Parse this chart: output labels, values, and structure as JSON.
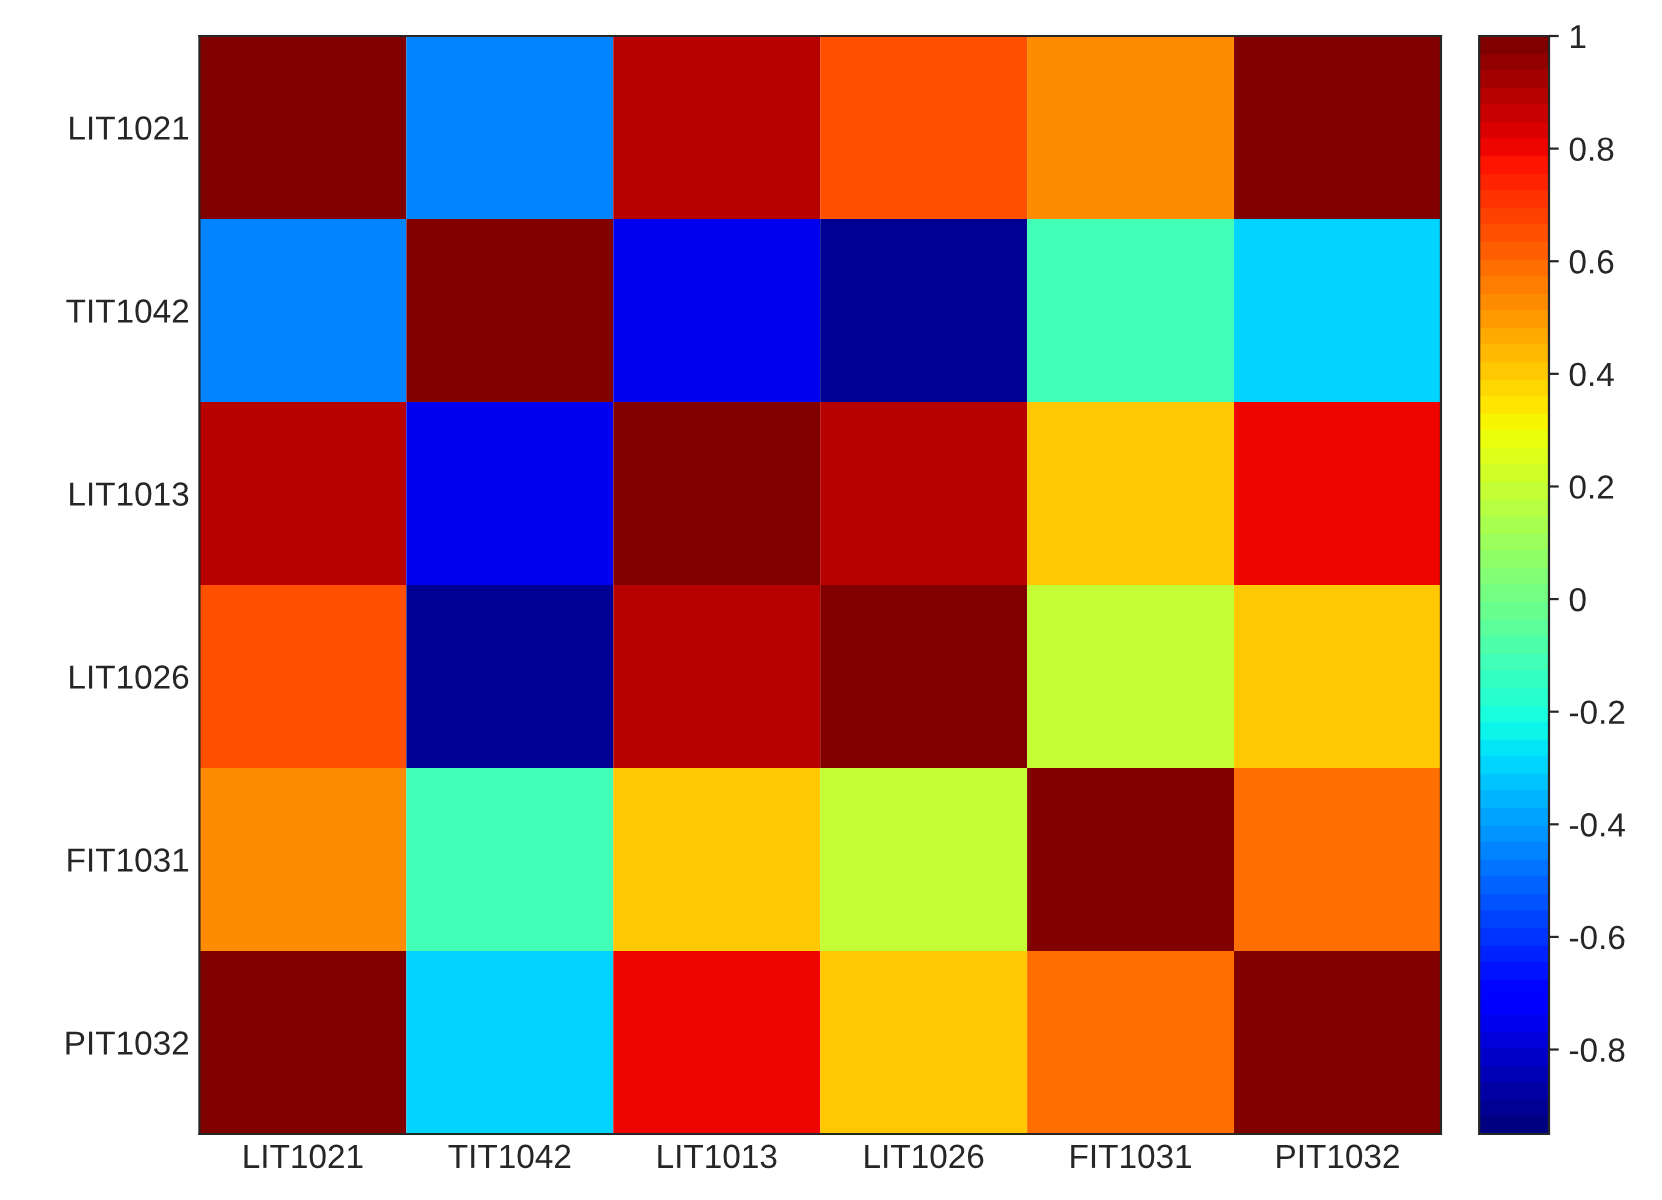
{
  "chart_data": {
    "type": "heatmap",
    "categories": [
      "LIT1021",
      "TIT1042",
      "LIT1013",
      "LIT1026",
      "FIT1031",
      "PIT1032"
    ],
    "y_categories": [
      "LIT1021",
      "TIT1042",
      "LIT1013",
      "LIT1026",
      "FIT1031",
      "PIT1032"
    ],
    "cells": [
      [
        1,
        -0.45,
        0.9,
        0.65,
        0.52,
        0.97
      ],
      [
        -0.45,
        1,
        -0.75,
        -0.9,
        -0.1,
        -0.3
      ],
      [
        0.9,
        -0.75,
        1,
        0.9,
        0.42,
        0.8
      ],
      [
        0.65,
        -0.9,
        0.9,
        1,
        0.2,
        0.42
      ],
      [
        0.52,
        -0.1,
        0.42,
        0.2,
        1,
        0.58
      ],
      [
        0.97,
        -0.3,
        0.8,
        0.42,
        0.58,
        1
      ]
    ],
    "clim": [
      -0.95,
      1
    ],
    "cticks": [
      -0.8,
      -0.6,
      -0.4,
      -0.2,
      0,
      0.2,
      0.4,
      0.6,
      0.8,
      1
    ]
  }
}
